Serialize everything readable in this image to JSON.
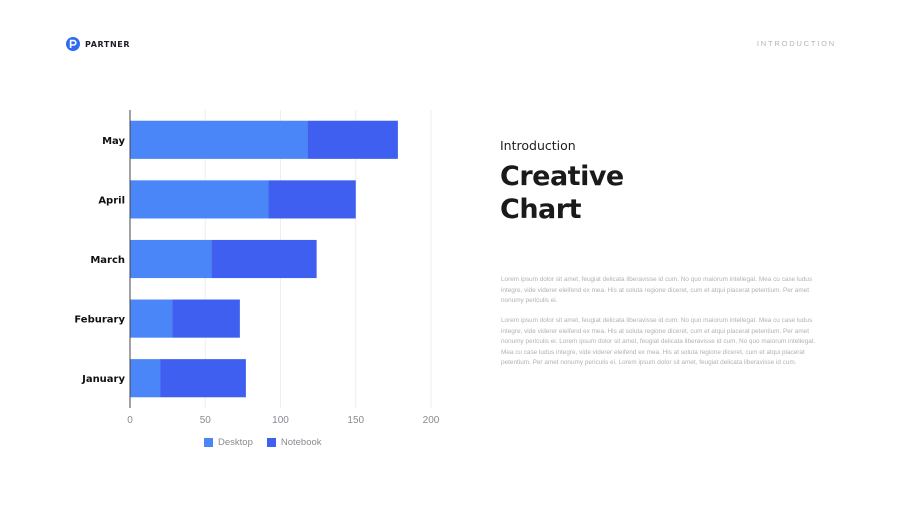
{
  "brand": {
    "name": "PARTNER",
    "logo_icon": "partner-p-logo-icon",
    "logo_color": "#2f6bf2"
  },
  "header": {
    "section_label": "INTRODUCTION"
  },
  "content": {
    "kicker": "Introduction",
    "title_line1": "Creative",
    "title_line2": "Chart",
    "paragraph1": "Lorem ipsum dolor sit amet, feugiat delicata liberavisse id cum. No quo maiorum intellegat. Mea cu case ludus integre, vide viderer eleifend ex mea. His at soluta regione diceret, cum et atqui placerat petentium. Per amet nonumy periculis ei.",
    "paragraph2": "Lorem ipsum dolor sit amet, feugiat delicata liberavisse id cum. No quo maiorum intellegat. Mea cu case ludus integre, vide viderer eleifend ex mea. His at soluta regione diceret, cum et atqui placerat petentium. Per amet nonumy periculis ei. Lorem ipsum dolor sit amet, feugiat delicata liberavisse id cum. No quo maiorum intellegat. Mea cu case ludus integre, vide viderer eleifend ex mea. His at soluta regione diceret, cum et atqui placerat petentium. Per amet nonumy periculis ei. Lorem ipsum dolor sit amet, feugiat delicata liberavisse id cum."
  },
  "chart_data": {
    "type": "bar",
    "orientation": "horizontal",
    "stacked": true,
    "categories": [
      "May",
      "April",
      "March",
      "Feburary",
      "January"
    ],
    "series": [
      {
        "name": "Desktop",
        "values": [
          118,
          92,
          54,
          28,
          20
        ],
        "color": "#4a86f8"
      },
      {
        "name": "Notebook",
        "values": [
          60,
          58,
          70,
          45,
          57
        ],
        "color": "#3f5ff0"
      }
    ],
    "xlim": [
      0,
      200
    ],
    "xticks": [
      0,
      50,
      100,
      150,
      200
    ],
    "grid": true,
    "legend_position": "bottom"
  }
}
